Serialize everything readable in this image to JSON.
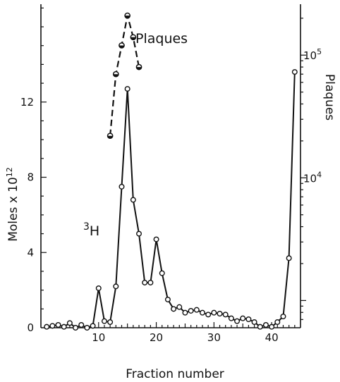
{
  "chart_data": {
    "type": "line",
    "title": "",
    "xlabel": "Fraction number",
    "ylabel_left": "Moles x 10",
    "ylabel_left_exponent": "12",
    "ylabel_right": "Plaques",
    "xlim": [
      0,
      45
    ],
    "ylim_left": [
      0,
      17.2
    ],
    "ylim_right_log": [
      600,
      260000
    ],
    "grid": false,
    "legend": "none",
    "x_ticks": [
      10,
      20,
      30,
      40
    ],
    "x_tick_labels": [
      "10",
      "20",
      "30",
      "40"
    ],
    "y_left_ticks": [
      0,
      4,
      8,
      12
    ],
    "y_left_tick_labels": [
      "0",
      "4",
      "8",
      "12"
    ],
    "y_right_ticks": [
      10000,
      100000
    ],
    "y_right_tick_labels": [
      {
        "base": "10",
        "exp": "4"
      },
      {
        "base": "10",
        "exp": "5"
      }
    ],
    "annotations": [
      {
        "text": "Plaques",
        "series": "plaques"
      },
      {
        "text_base": "3",
        "text_main": "H",
        "series": "tritium"
      }
    ],
    "series": [
      {
        "name": "",
        "id": "tritium",
        "axis": "left",
        "style": "solid-open-circles",
        "x": [
          1,
          2,
          3,
          4,
          5,
          6,
          7,
          8,
          9,
          10,
          11,
          12,
          13,
          14,
          15,
          16,
          17,
          18,
          19,
          20,
          21,
          22,
          23,
          24,
          25,
          26,
          27,
          28,
          29,
          30,
          31,
          32,
          33,
          34,
          35,
          36,
          37,
          38,
          39,
          40,
          41,
          42,
          43,
          44
        ],
        "y": [
          0.05,
          0.1,
          0.15,
          0.05,
          0.25,
          0.0,
          0.15,
          0.0,
          0.1,
          2.1,
          0.35,
          0.3,
          2.2,
          7.5,
          12.7,
          6.8,
          5.0,
          2.4,
          2.4,
          4.7,
          2.9,
          1.5,
          1.0,
          1.1,
          0.8,
          0.9,
          0.95,
          0.8,
          0.7,
          0.8,
          0.75,
          0.7,
          0.5,
          0.35,
          0.5,
          0.45,
          0.3,
          0.05,
          0.15,
          0.05,
          0.3,
          0.6,
          3.7,
          13.6
        ]
      },
      {
        "name": "",
        "id": "plaques",
        "axis": "right",
        "style": "dashed-half-filled-circles",
        "x": [
          12,
          13,
          14,
          15,
          16,
          17
        ],
        "y": [
          22000,
          70000,
          120000,
          210000,
          140000,
          80000
        ]
      }
    ]
  },
  "colors": {
    "ink": "#111111",
    "background": "#ffffff"
  }
}
